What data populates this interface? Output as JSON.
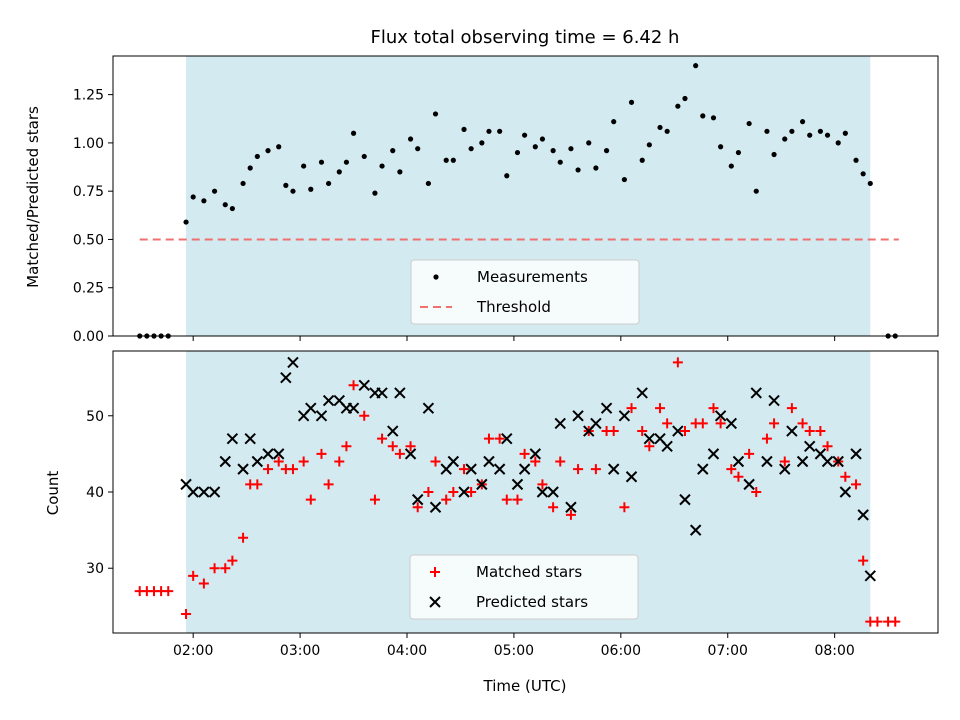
{
  "chart_data": [
    {
      "type": "scatter",
      "title": "Flux total observing time = 6.42 h",
      "xlabel": "",
      "ylabel": "Matched/Predicted stars",
      "xlim": [
        "01:15",
        "08:58"
      ],
      "ylim": [
        0,
        1.45
      ],
      "yticks": [
        "0.00",
        "0.25",
        "0.50",
        "0.75",
        "1.00",
        "1.25"
      ],
      "shaded_span": [
        "01:56",
        "08:20"
      ],
      "shaded_color": "#d3eaf1",
      "legend_position": "lower center",
      "series": [
        {
          "name": "Measurements",
          "marker": "dot",
          "color": "#000000",
          "points": [
            [
              "01:30",
              0
            ],
            [
              "01:34",
              0
            ],
            [
              "01:38",
              0
            ],
            [
              "01:42",
              0
            ],
            [
              "01:46",
              0
            ],
            [
              "01:56",
              0.59
            ],
            [
              "02:00",
              0.72
            ],
            [
              "02:06",
              0.7
            ],
            [
              "02:12",
              0.75
            ],
            [
              "02:18",
              0.68
            ],
            [
              "02:22",
              0.66
            ],
            [
              "02:28",
              0.79
            ],
            [
              "02:32",
              0.87
            ],
            [
              "02:36",
              0.93
            ],
            [
              "02:42",
              0.96
            ],
            [
              "02:48",
              0.98
            ],
            [
              "02:52",
              0.78
            ],
            [
              "02:56",
              0.75
            ],
            [
              "03:02",
              0.88
            ],
            [
              "03:06",
              0.76
            ],
            [
              "03:12",
              0.9
            ],
            [
              "03:16",
              0.79
            ],
            [
              "03:22",
              0.85
            ],
            [
              "03:26",
              0.9
            ],
            [
              "03:30",
              1.05
            ],
            [
              "03:36",
              0.93
            ],
            [
              "03:42",
              0.74
            ],
            [
              "03:46",
              0.88
            ],
            [
              "03:52",
              0.96
            ],
            [
              "03:56",
              0.85
            ],
            [
              "04:02",
              1.02
            ],
            [
              "04:06",
              0.97
            ],
            [
              "04:12",
              0.79
            ],
            [
              "04:16",
              1.15
            ],
            [
              "04:22",
              0.91
            ],
            [
              "04:26",
              0.91
            ],
            [
              "04:32",
              1.07
            ],
            [
              "04:36",
              0.97
            ],
            [
              "04:42",
              1.0
            ],
            [
              "04:46",
              1.06
            ],
            [
              "04:52",
              1.06
            ],
            [
              "04:56",
              0.83
            ],
            [
              "05:02",
              0.95
            ],
            [
              "05:06",
              1.04
            ],
            [
              "05:12",
              0.98
            ],
            [
              "05:16",
              1.02
            ],
            [
              "05:22",
              0.96
            ],
            [
              "05:26",
              0.9
            ],
            [
              "05:32",
              0.97
            ],
            [
              "05:36",
              0.86
            ],
            [
              "05:42",
              1.0
            ],
            [
              "05:46",
              0.87
            ],
            [
              "05:52",
              0.96
            ],
            [
              "05:56",
              1.11
            ],
            [
              "06:02",
              0.81
            ],
            [
              "06:06",
              1.21
            ],
            [
              "06:12",
              0.91
            ],
            [
              "06:16",
              0.99
            ],
            [
              "06:22",
              1.08
            ],
            [
              "06:26",
              1.06
            ],
            [
              "06:32",
              1.19
            ],
            [
              "06:36",
              1.23
            ],
            [
              "06:42",
              1.4
            ],
            [
              "06:46",
              1.14
            ],
            [
              "06:52",
              1.13
            ],
            [
              "06:56",
              0.98
            ],
            [
              "07:02",
              0.88
            ],
            [
              "07:06",
              0.95
            ],
            [
              "07:12",
              1.1
            ],
            [
              "07:16",
              0.75
            ],
            [
              "07:22",
              1.06
            ],
            [
              "07:26",
              0.94
            ],
            [
              "07:32",
              1.02
            ],
            [
              "07:36",
              1.06
            ],
            [
              "07:42",
              1.11
            ],
            [
              "07:46",
              1.04
            ],
            [
              "07:52",
              1.06
            ],
            [
              "07:56",
              1.04
            ],
            [
              "08:02",
              1.0
            ],
            [
              "08:06",
              1.05
            ],
            [
              "08:12",
              0.91
            ],
            [
              "08:16",
              0.84
            ],
            [
              "08:20",
              0.79
            ],
            [
              "08:30",
              0
            ],
            [
              "08:34",
              0
            ]
          ]
        },
        {
          "name": "Threshold",
          "style": "dashed-line",
          "color": "#f07070",
          "points": [
            [
              "01:30",
              0.5
            ],
            [
              "08:36",
              0.5
            ]
          ]
        }
      ]
    },
    {
      "type": "scatter",
      "title": "",
      "xlabel": "Time (UTC)",
      "ylabel": "Count",
      "xlim": [
        "01:15",
        "08:58"
      ],
      "ylim": [
        21.5,
        58.5
      ],
      "yticks": [
        "30",
        "40",
        "50"
      ],
      "xticks": [
        "02:00",
        "03:00",
        "04:00",
        "05:00",
        "06:00",
        "07:00",
        "08:00"
      ],
      "shaded_span": [
        "01:56",
        "08:20"
      ],
      "shaded_color": "#d3eaf1",
      "legend_position": "lower center",
      "series": [
        {
          "name": "Matched stars",
          "marker": "plus",
          "color": "#ff0000",
          "points": [
            [
              "01:30",
              27
            ],
            [
              "01:34",
              27
            ],
            [
              "01:38",
              27
            ],
            [
              "01:42",
              27
            ],
            [
              "01:46",
              27
            ],
            [
              "01:56",
              24
            ],
            [
              "02:00",
              29
            ],
            [
              "02:06",
              28
            ],
            [
              "02:12",
              30
            ],
            [
              "02:18",
              30
            ],
            [
              "02:22",
              31
            ],
            [
              "02:28",
              34
            ],
            [
              "02:32",
              41
            ],
            [
              "02:36",
              41
            ],
            [
              "02:42",
              43
            ],
            [
              "02:48",
              44
            ],
            [
              "02:52",
              43
            ],
            [
              "02:56",
              43
            ],
            [
              "03:02",
              44
            ],
            [
              "03:06",
              39
            ],
            [
              "03:12",
              45
            ],
            [
              "03:16",
              41
            ],
            [
              "03:22",
              44
            ],
            [
              "03:26",
              46
            ],
            [
              "03:30",
              54
            ],
            [
              "03:36",
              50
            ],
            [
              "03:42",
              39
            ],
            [
              "03:46",
              47
            ],
            [
              "03:52",
              46
            ],
            [
              "03:56",
              45
            ],
            [
              "04:02",
              46
            ],
            [
              "04:06",
              38
            ],
            [
              "04:12",
              40
            ],
            [
              "04:16",
              44
            ],
            [
              "04:22",
              39
            ],
            [
              "04:26",
              40
            ],
            [
              "04:32",
              43
            ],
            [
              "04:36",
              40
            ],
            [
              "04:42",
              41
            ],
            [
              "04:46",
              47
            ],
            [
              "04:52",
              47
            ],
            [
              "04:56",
              39
            ],
            [
              "05:02",
              39
            ],
            [
              "05:06",
              45
            ],
            [
              "05:12",
              44
            ],
            [
              "05:16",
              41
            ],
            [
              "05:22",
              38
            ],
            [
              "05:26",
              44
            ],
            [
              "05:32",
              37
            ],
            [
              "05:36",
              43
            ],
            [
              "05:42",
              48
            ],
            [
              "05:46",
              43
            ],
            [
              "05:52",
              48
            ],
            [
              "05:56",
              48
            ],
            [
              "06:02",
              38
            ],
            [
              "06:06",
              51
            ],
            [
              "06:12",
              48
            ],
            [
              "06:16",
              46
            ],
            [
              "06:22",
              51
            ],
            [
              "06:26",
              49
            ],
            [
              "06:32",
              57
            ],
            [
              "06:36",
              48
            ],
            [
              "06:42",
              49
            ],
            [
              "06:46",
              49
            ],
            [
              "06:52",
              51
            ],
            [
              "06:56",
              49
            ],
            [
              "07:02",
              43
            ],
            [
              "07:06",
              42
            ],
            [
              "07:12",
              45
            ],
            [
              "07:16",
              40
            ],
            [
              "07:22",
              47
            ],
            [
              "07:26",
              49
            ],
            [
              "07:32",
              44
            ],
            [
              "07:36",
              51
            ],
            [
              "07:42",
              49
            ],
            [
              "07:46",
              48
            ],
            [
              "07:52",
              48
            ],
            [
              "07:56",
              46
            ],
            [
              "08:02",
              44
            ],
            [
              "08:06",
              42
            ],
            [
              "08:12",
              41
            ],
            [
              "08:16",
              31
            ],
            [
              "08:20",
              23
            ],
            [
              "08:24",
              23
            ],
            [
              "08:30",
              23
            ],
            [
              "08:34",
              23
            ]
          ]
        },
        {
          "name": "Predicted stars",
          "marker": "x",
          "color": "#000000",
          "points": [
            [
              "01:56",
              41
            ],
            [
              "02:00",
              40
            ],
            [
              "02:06",
              40
            ],
            [
              "02:12",
              40
            ],
            [
              "02:18",
              44
            ],
            [
              "02:22",
              47
            ],
            [
              "02:28",
              43
            ],
            [
              "02:32",
              47
            ],
            [
              "02:36",
              44
            ],
            [
              "02:42",
              45
            ],
            [
              "02:48",
              45
            ],
            [
              "02:52",
              55
            ],
            [
              "02:56",
              57
            ],
            [
              "03:02",
              50
            ],
            [
              "03:06",
              51
            ],
            [
              "03:12",
              50
            ],
            [
              "03:16",
              52
            ],
            [
              "03:22",
              52
            ],
            [
              "03:26",
              51
            ],
            [
              "03:30",
              51
            ],
            [
              "03:36",
              54
            ],
            [
              "03:42",
              53
            ],
            [
              "03:46",
              53
            ],
            [
              "03:52",
              48
            ],
            [
              "03:56",
              53
            ],
            [
              "04:02",
              45
            ],
            [
              "04:06",
              39
            ],
            [
              "04:12",
              51
            ],
            [
              "04:16",
              38
            ],
            [
              "04:22",
              43
            ],
            [
              "04:26",
              44
            ],
            [
              "04:32",
              40
            ],
            [
              "04:36",
              43
            ],
            [
              "04:42",
              41
            ],
            [
              "04:46",
              44
            ],
            [
              "04:52",
              43
            ],
            [
              "04:56",
              47
            ],
            [
              "05:02",
              41
            ],
            [
              "05:06",
              43
            ],
            [
              "05:12",
              45
            ],
            [
              "05:16",
              40
            ],
            [
              "05:22",
              40
            ],
            [
              "05:26",
              49
            ],
            [
              "05:32",
              38
            ],
            [
              "05:36",
              50
            ],
            [
              "05:42",
              48
            ],
            [
              "05:46",
              49
            ],
            [
              "05:52",
              51
            ],
            [
              "05:56",
              43
            ],
            [
              "06:02",
              50
            ],
            [
              "06:06",
              42
            ],
            [
              "06:12",
              53
            ],
            [
              "06:16",
              47
            ],
            [
              "06:22",
              47
            ],
            [
              "06:26",
              46
            ],
            [
              "06:32",
              48
            ],
            [
              "06:36",
              39
            ],
            [
              "06:42",
              35
            ],
            [
              "06:46",
              43
            ],
            [
              "06:52",
              45
            ],
            [
              "06:56",
              50
            ],
            [
              "07:02",
              49
            ],
            [
              "07:06",
              44
            ],
            [
              "07:12",
              41
            ],
            [
              "07:16",
              53
            ],
            [
              "07:22",
              44
            ],
            [
              "07:26",
              52
            ],
            [
              "07:32",
              43
            ],
            [
              "07:36",
              48
            ],
            [
              "07:42",
              44
            ],
            [
              "07:46",
              46
            ],
            [
              "07:52",
              45
            ],
            [
              "07:56",
              44
            ],
            [
              "08:02",
              44
            ],
            [
              "08:06",
              40
            ],
            [
              "08:12",
              45
            ],
            [
              "08:16",
              37
            ],
            [
              "08:20",
              29
            ]
          ]
        }
      ]
    }
  ]
}
